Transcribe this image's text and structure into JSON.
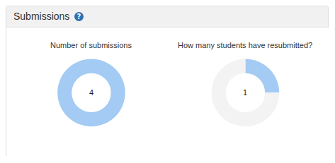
{
  "header": {
    "title": "Submissions",
    "help_icon": "?"
  },
  "chart_data": [
    {
      "type": "pie",
      "title": "Number of submissions",
      "values": [
        4
      ],
      "colors": [
        "#a3cbf3"
      ],
      "annotations": [
        "4"
      ]
    },
    {
      "type": "pie",
      "title": "How many students have resubmitted?",
      "values": [
        1,
        3
      ],
      "colors": [
        "#a3cbf3",
        "#f3f3f3"
      ],
      "annotations": [
        "1"
      ]
    }
  ]
}
